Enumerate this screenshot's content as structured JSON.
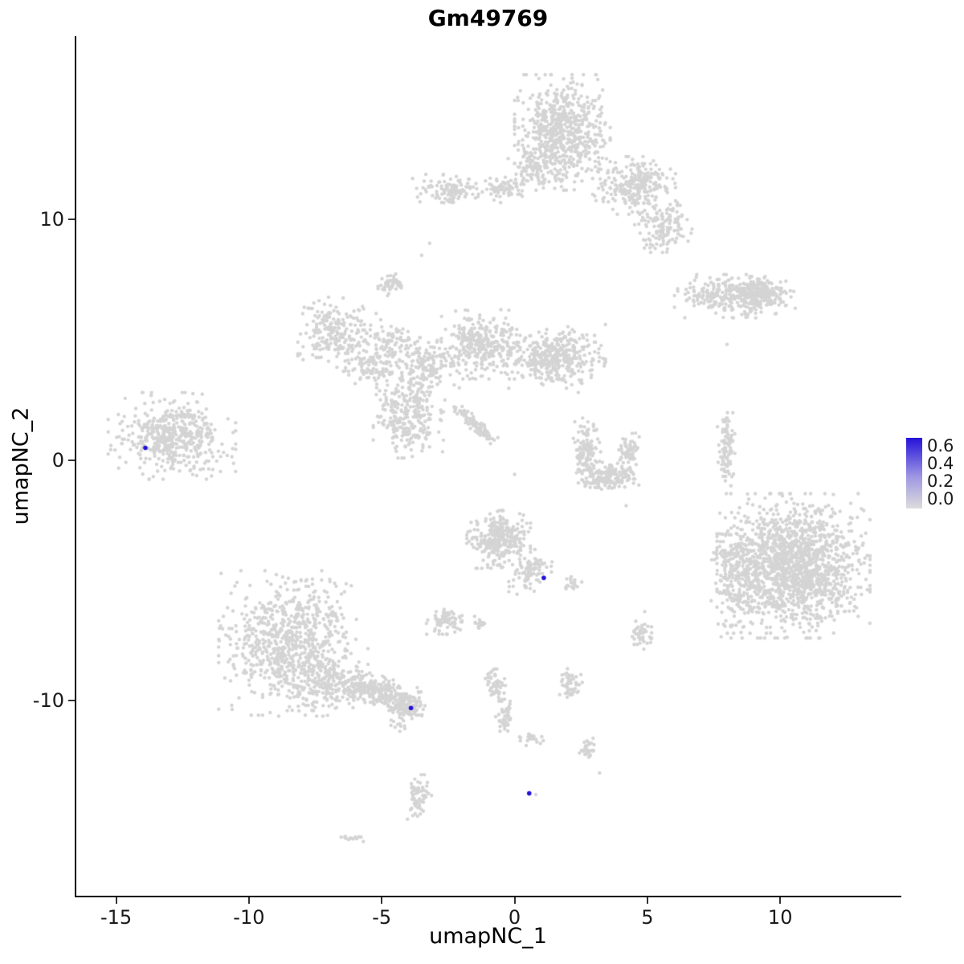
{
  "chart_data": {
    "type": "scatter",
    "title": "Gm49769",
    "xlabel": "umapNC_1",
    "ylabel": "umapNC_2",
    "xlim": [
      -16.5,
      14.5
    ],
    "ylim": [
      -18.1,
      17.6
    ],
    "x_ticks": [
      -15,
      -10,
      -5,
      0,
      5,
      10
    ],
    "y_ticks": [
      -10,
      0,
      10
    ],
    "grid": false,
    "point_color_low": "#D4D4D4",
    "point_color_high": "#2412D9",
    "point_radius": 2.2,
    "expressing_point_radius": 2.8,
    "legend": {
      "position": "right",
      "max_value": 0.65,
      "ticks": [
        0.6,
        0.4,
        0.2,
        0.0
      ],
      "low_color": "#DCDCDC",
      "mid_color": "#9F97E3",
      "high_color": "#2412D9"
    },
    "clusters": [
      {
        "x": 1.8,
        "y": 13.6,
        "rx": 1.5,
        "ry": 2.0,
        "n": 650
      },
      {
        "x": 4.5,
        "y": 11.4,
        "rx": 1.3,
        "ry": 1.0,
        "n": 260
      },
      {
        "x": 5.6,
        "y": 9.7,
        "rx": 0.9,
        "ry": 0.9,
        "n": 130
      },
      {
        "x": -2.4,
        "y": 11.2,
        "rx": 1.2,
        "ry": 0.55,
        "n": 110
      },
      {
        "x": -0.4,
        "y": 11.2,
        "rx": 0.8,
        "ry": 0.45,
        "n": 60
      },
      {
        "x": 0.6,
        "y": 12.1,
        "rx": 0.7,
        "ry": 0.7,
        "n": 80
      },
      {
        "x": -4.6,
        "y": 7.3,
        "rx": 0.45,
        "ry": 0.4,
        "n": 45
      },
      {
        "x": 8.3,
        "y": 6.8,
        "rx": 1.9,
        "ry": 0.75,
        "n": 300
      },
      {
        "x": 9.3,
        "y": 6.9,
        "rx": 0.9,
        "ry": 0.6,
        "n": 150
      },
      {
        "x": -6.6,
        "y": 5.2,
        "rx": 1.3,
        "ry": 1.3,
        "n": 240
      },
      {
        "x": -5.3,
        "y": 3.9,
        "rx": 0.9,
        "ry": 0.7,
        "n": 90
      },
      {
        "x": -4.6,
        "y": 5.0,
        "rx": 0.7,
        "ry": 0.6,
        "n": 60
      },
      {
        "x": -4.0,
        "y": 2.0,
        "rx": 1.1,
        "ry": 1.6,
        "n": 280
      },
      {
        "x": -3.4,
        "y": 4.0,
        "rx": 1.1,
        "ry": 0.9,
        "n": 150
      },
      {
        "x": -1.2,
        "y": 4.8,
        "rx": 1.3,
        "ry": 1.2,
        "n": 320
      },
      {
        "x": 1.5,
        "y": 4.3,
        "rx": 1.6,
        "ry": 1.1,
        "n": 380
      },
      {
        "x": -1.5,
        "y": 1.5,
        "rx": 1.3,
        "ry": 0.22,
        "n": 90,
        "rot": -46
      },
      {
        "x": -12.9,
        "y": 1.0,
        "rx": 2.0,
        "ry": 1.5,
        "n": 480
      },
      {
        "x": 2.7,
        "y": 0.3,
        "rx": 0.45,
        "ry": 1.2,
        "n": 130
      },
      {
        "x": 3.6,
        "y": -0.7,
        "rx": 1.0,
        "ry": 0.5,
        "n": 150
      },
      {
        "x": 4.3,
        "y": 0.3,
        "rx": 0.35,
        "ry": 0.8,
        "n": 70
      },
      {
        "x": 8.0,
        "y": 0.4,
        "rx": 0.3,
        "ry": 1.3,
        "n": 90
      },
      {
        "x": 10.5,
        "y": -4.4,
        "rx": 2.4,
        "ry": 2.5,
        "n": 1500
      },
      {
        "x": 8.4,
        "y": -4.8,
        "rx": 0.9,
        "ry": 2.0,
        "n": 220
      },
      {
        "x": -0.6,
        "y": -3.3,
        "rx": 1.0,
        "ry": 1.0,
        "n": 300
      },
      {
        "x": 0.6,
        "y": -4.7,
        "rx": 0.55,
        "ry": 0.9,
        "n": 90,
        "rot": -30
      },
      {
        "x": 2.2,
        "y": -5.1,
        "rx": 0.3,
        "ry": 0.3,
        "n": 18
      },
      {
        "x": -2.7,
        "y": -6.7,
        "rx": 0.6,
        "ry": 0.45,
        "n": 75
      },
      {
        "x": -1.3,
        "y": -6.8,
        "rx": 0.3,
        "ry": 0.25,
        "n": 18
      },
      {
        "x": 4.8,
        "y": -7.2,
        "rx": 0.4,
        "ry": 0.55,
        "n": 45
      },
      {
        "x": -8.5,
        "y": -7.6,
        "rx": 2.2,
        "ry": 2.5,
        "n": 750
      },
      {
        "x": -7.2,
        "y": -9.2,
        "rx": 1.4,
        "ry": 1.2,
        "n": 200
      },
      {
        "x": -5.2,
        "y": -9.6,
        "rx": 1.6,
        "ry": 0.55,
        "n": 260,
        "rot": -15
      },
      {
        "x": -4.1,
        "y": -10.2,
        "rx": 0.55,
        "ry": 0.45,
        "n": 110
      },
      {
        "x": -0.75,
        "y": -9.4,
        "rx": 0.35,
        "ry": 0.6,
        "n": 55
      },
      {
        "x": -0.35,
        "y": -10.8,
        "rx": 0.3,
        "ry": 0.65,
        "n": 45
      },
      {
        "x": 0.6,
        "y": -11.6,
        "rx": 0.4,
        "ry": 0.25,
        "n": 25
      },
      {
        "x": 2.1,
        "y": -9.3,
        "rx": 0.4,
        "ry": 0.55,
        "n": 50
      },
      {
        "x": 2.8,
        "y": -12.1,
        "rx": 0.3,
        "ry": 0.45,
        "n": 30
      },
      {
        "x": -3.6,
        "y": -13.9,
        "rx": 0.4,
        "ry": 0.85,
        "n": 65
      },
      {
        "x": -6.1,
        "y": -15.7,
        "rx": 0.45,
        "ry": 0.15,
        "n": 14
      },
      {
        "x": -4.4,
        "y": -11.0,
        "rx": 0.3,
        "ry": 0.3,
        "n": 10
      }
    ],
    "singletons": [
      [
        -3.2,
        9.0
      ],
      [
        -3.5,
        8.5
      ],
      [
        8.0,
        4.8
      ],
      [
        4.2,
        -1.9
      ],
      [
        2.4,
        2.8
      ],
      [
        0.0,
        -0.6
      ],
      [
        3.2,
        -13.0
      ],
      [
        0.8,
        -13.9
      ],
      [
        -4.5,
        -11.1
      ],
      [
        4.9,
        -6.3
      ]
    ],
    "expressing_cells": [
      {
        "x": -13.9,
        "y": 0.5,
        "value": 0.65
      },
      {
        "x": 1.1,
        "y": -4.9,
        "value": 0.6
      },
      {
        "x": -3.9,
        "y": -10.3,
        "value": 0.6
      },
      {
        "x": 0.55,
        "y": -13.85,
        "value": 0.6
      }
    ]
  }
}
